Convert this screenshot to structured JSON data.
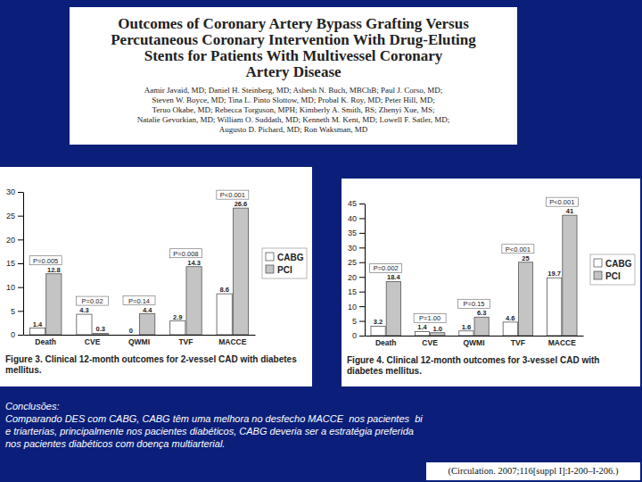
{
  "header": {
    "title_lines": [
      "Outcomes of Coronary Artery Bypass Grafting Versus",
      "Percutaneous Coronary Intervention With Drug-Eluting",
      "Stents for Patients With Multivessel Coronary",
      "Artery Disease"
    ],
    "author_lines": [
      "Aamir Javaid, MD; Daniel H. Steinberg, MD; Ashesh N. Buch, MBChB; Paul J. Corso, MD;",
      "Steven W. Boyce, MD; Tina L. Pinto Slottow, MD; Probal K. Roy, MD; Peter Hill, MD;",
      "Teruo Okabe, MD; Rebecca Torguson, MPH; Kimberly A. Smith, BS; Zhenyi Xue, MS;",
      "Natalie Gevorkian, MD; William O. Suddath, MD; Kenneth M. Kent, MD; Lowell F. Satler, MD;",
      "Augusto D. Pichard, MD; Ron Waksman, MD"
    ]
  },
  "chart_data": [
    {
      "type": "bar",
      "title": "Figure 3. Clinical 12-month outcomes for 2-vessel CAD with diabetes mellitus.",
      "categories": [
        "Death",
        "CVE",
        "QWMI",
        "TVF",
        "MACCE"
      ],
      "series": [
        {
          "name": "CABG",
          "color": "#ffffff",
          "values": [
            1.4,
            4.3,
            0,
            2.9,
            8.6
          ],
          "value_labels": [
            "1.4",
            "4.3",
            "0",
            "2.9",
            "8.6"
          ]
        },
        {
          "name": "PCI",
          "color": "#c4c4c4",
          "values": [
            12.8,
            0.3,
            4.4,
            14.3,
            26.6
          ],
          "value_labels": [
            "12.8",
            "0.3",
            "4.4",
            "14.3",
            "26.6"
          ]
        }
      ],
      "annotations": [
        "P=0.005",
        "P=0.02",
        "P=0.14",
        "P=0.008",
        "P<0.001"
      ],
      "ylim": [
        0,
        30
      ],
      "yticks": [
        0,
        5,
        10,
        15,
        20,
        25,
        30
      ],
      "grid": false,
      "legend": "right",
      "data_labels": true
    },
    {
      "type": "bar",
      "title": "Figure 4. Clinical 12-month outcomes for 3-vessel CAD with diabetes mellitus.",
      "categories": [
        "Death",
        "CVE",
        "QWMI",
        "TVF",
        "MACCE"
      ],
      "series": [
        {
          "name": "CABG",
          "color": "#ffffff",
          "values": [
            3.2,
            1.4,
            1.6,
            4.6,
            19.7
          ],
          "value_labels": [
            "3.2",
            "1.4",
            "1.6",
            "4.6",
            "19.7"
          ]
        },
        {
          "name": "PCI",
          "color": "#c4c4c4",
          "values": [
            18.4,
            1.0,
            6.3,
            25,
            41
          ],
          "value_labels": [
            "18.4",
            "1.0",
            "6.3",
            "25",
            "41"
          ]
        }
      ],
      "annotations": [
        "P=0.002",
        "P=1.00",
        "P=0.15",
        "P<0.001",
        "P<0.001"
      ],
      "ylim": [
        0,
        45
      ],
      "yticks": [
        0,
        5,
        10,
        15,
        20,
        25,
        30,
        35,
        40,
        45
      ],
      "grid": false,
      "legend": "right",
      "data_labels": true
    }
  ],
  "conclusions": {
    "heading": "Conclusões:",
    "lines": [
      "Comparando DES com CABG, CABG têm uma melhora no desfecho MACCE  nos pacientes  bi",
      "e triarterias, principalmente nos pacientes diabéticos, CABG deveria ser a estratégia preferida",
      "nos pacientes diabéticos com doença multiarterial."
    ]
  },
  "citation": "(Circulation. 2007;116[suppl I]:I-200–I-206.)"
}
